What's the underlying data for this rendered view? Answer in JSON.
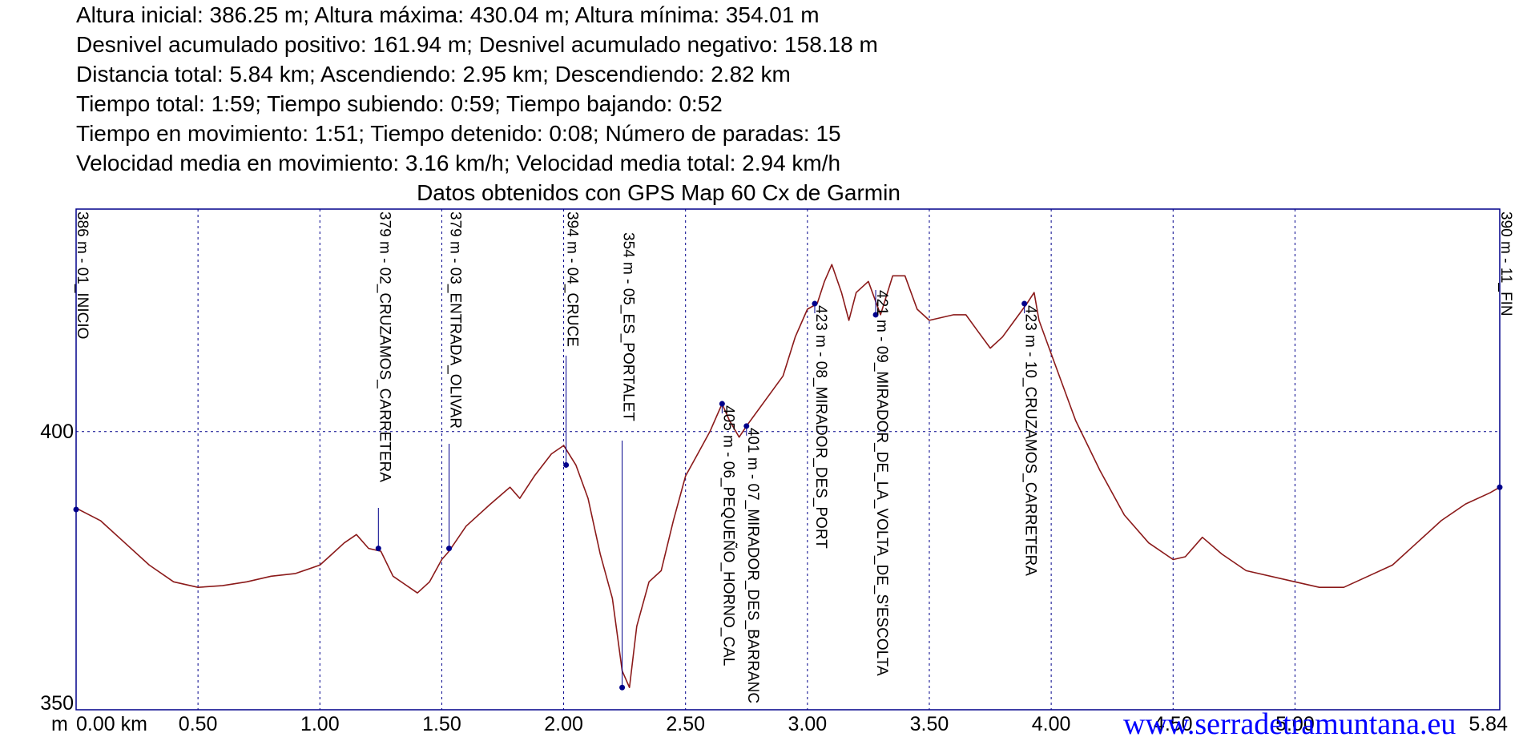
{
  "stats_lines": [
    "Altura inicial: 386.25 m; Altura máxima: 430.04 m; Altura mínima: 354.01 m",
    "Desnivel acumulado positivo: 161.94 m; Desnivel acumulado negativo: 158.18 m",
    "Distancia total: 5.84 km; Ascendiendo: 2.95 km; Descendiendo: 2.82 km",
    "Tiempo total: 1:59; Tiempo subiendo: 0:59; Tiempo bajando: 0:52",
    "Tiempo en movimiento: 1:51; Tiempo detenido: 0:08; Número de paradas: 15",
    "Velocidad media en movimiento: 3.16 km/h; Velocidad media total: 2.94 km/h"
  ],
  "chart_data": {
    "type": "line",
    "title": "Datos obtenidos con GPS Map 60 Cx de Garmin",
    "x_unit_label": "m",
    "xlim": [
      0,
      5.84
    ],
    "ylim": [
      350,
      440
    ],
    "x_ticks": [
      "0.00 km",
      "0.50",
      "1.00",
      "1.50",
      "2.00",
      "2.50",
      "3.00",
      "3.50",
      "4.00",
      "4.50",
      "5.00",
      "5.84"
    ],
    "x_tick_values": [
      0,
      0.5,
      1.0,
      1.5,
      2.0,
      2.5,
      3.0,
      3.5,
      4.0,
      4.5,
      5.0,
      5.84
    ],
    "y_ticks": [
      "350",
      "400"
    ],
    "y_tick_values": [
      350,
      400
    ],
    "grid": true,
    "series": [
      {
        "color": "#8b1a1a",
        "points": [
          [
            0,
            386.25
          ],
          [
            0.1,
            384
          ],
          [
            0.2,
            380
          ],
          [
            0.3,
            376
          ],
          [
            0.4,
            373
          ],
          [
            0.5,
            372
          ],
          [
            0.6,
            372.3
          ],
          [
            0.7,
            373
          ],
          [
            0.8,
            374
          ],
          [
            0.9,
            374.5
          ],
          [
            1.0,
            376
          ],
          [
            1.05,
            378
          ],
          [
            1.1,
            380
          ],
          [
            1.15,
            381.5
          ],
          [
            1.2,
            379
          ],
          [
            1.25,
            378.5
          ],
          [
            1.3,
            374
          ],
          [
            1.4,
            371
          ],
          [
            1.45,
            373
          ],
          [
            1.5,
            377
          ],
          [
            1.53,
            378.5
          ],
          [
            1.6,
            383
          ],
          [
            1.7,
            387
          ],
          [
            1.78,
            390
          ],
          [
            1.82,
            388
          ],
          [
            1.88,
            392
          ],
          [
            1.95,
            396
          ],
          [
            2.0,
            397.5
          ],
          [
            2.05,
            394
          ],
          [
            2.1,
            388
          ],
          [
            2.15,
            378
          ],
          [
            2.2,
            370
          ],
          [
            2.24,
            357
          ],
          [
            2.27,
            354.01
          ],
          [
            2.3,
            365
          ],
          [
            2.35,
            373
          ],
          [
            2.4,
            375
          ],
          [
            2.45,
            384
          ],
          [
            2.5,
            392
          ],
          [
            2.55,
            396
          ],
          [
            2.6,
            400
          ],
          [
            2.65,
            405
          ],
          [
            2.68,
            402
          ],
          [
            2.72,
            399
          ],
          [
            2.75,
            401
          ],
          [
            2.8,
            404
          ],
          [
            2.9,
            410
          ],
          [
            2.95,
            417
          ],
          [
            3.0,
            422
          ],
          [
            3.04,
            423
          ],
          [
            3.07,
            427
          ],
          [
            3.1,
            430.04
          ],
          [
            3.14,
            425
          ],
          [
            3.17,
            420
          ],
          [
            3.2,
            425
          ],
          [
            3.25,
            427
          ],
          [
            3.3,
            421
          ],
          [
            3.35,
            428
          ],
          [
            3.4,
            428
          ],
          [
            3.45,
            422
          ],
          [
            3.5,
            420
          ],
          [
            3.6,
            421
          ],
          [
            3.65,
            421
          ],
          [
            3.7,
            418
          ],
          [
            3.75,
            415
          ],
          [
            3.8,
            417
          ],
          [
            3.85,
            420
          ],
          [
            3.9,
            423
          ],
          [
            3.93,
            425
          ],
          [
            3.95,
            420
          ],
          [
            4.0,
            414
          ],
          [
            4.1,
            402
          ],
          [
            4.2,
            393
          ],
          [
            4.3,
            385
          ],
          [
            4.4,
            380
          ],
          [
            4.5,
            377
          ],
          [
            4.55,
            377.5
          ],
          [
            4.62,
            381
          ],
          [
            4.7,
            378
          ],
          [
            4.8,
            375
          ],
          [
            5.0,
            373
          ],
          [
            5.1,
            372
          ],
          [
            5.2,
            372
          ],
          [
            5.3,
            374
          ],
          [
            5.4,
            376
          ],
          [
            5.5,
            380
          ],
          [
            5.6,
            384
          ],
          [
            5.7,
            387
          ],
          [
            5.8,
            389
          ],
          [
            5.84,
            390
          ]
        ]
      }
    ],
    "waypoints": [
      {
        "x": 0.0,
        "elev": 386,
        "label": "386 m - 01_INICIO"
      },
      {
        "x": 1.24,
        "elev": 379,
        "label": "379 m - 02_CRUZAMOS_CARRETERA"
      },
      {
        "x": 1.53,
        "elev": 379,
        "label": "379 m - 03_ENTRADA_OLIVAR"
      },
      {
        "x": 2.01,
        "elev": 394,
        "label": "394 m - 04_CRUCE"
      },
      {
        "x": 2.24,
        "elev": 354,
        "label": "354 m - 05_ES_PORTALET"
      },
      {
        "x": 2.65,
        "elev": 405,
        "label": "405 m - 06_PEQUEÑO_HORNO_CAL"
      },
      {
        "x": 2.75,
        "elev": 401,
        "label": "401 m - 07_MIRADOR_DES_BARRANC"
      },
      {
        "x": 3.03,
        "elev": 423,
        "label": "423 m - 08_MIRADOR_DES_PORT"
      },
      {
        "x": 3.28,
        "elev": 421,
        "label": "421 m - 09_MIRADOR_DE_LA_VOLTA_DE_S'ESCOLTA"
      },
      {
        "x": 3.89,
        "elev": 423,
        "label": "423 m - 10_CRUZAMOS_CARRETERA"
      },
      {
        "x": 5.84,
        "elev": 390,
        "label": "390 m - 11_FIN"
      }
    ]
  },
  "watermark": "www.serradetramuntana.eu",
  "colors": {
    "profile_line": "#8b1a1a",
    "waypoint": "#00008b",
    "grid": "#00008b",
    "frame": "#00008b",
    "watermark": "#0000ff"
  }
}
